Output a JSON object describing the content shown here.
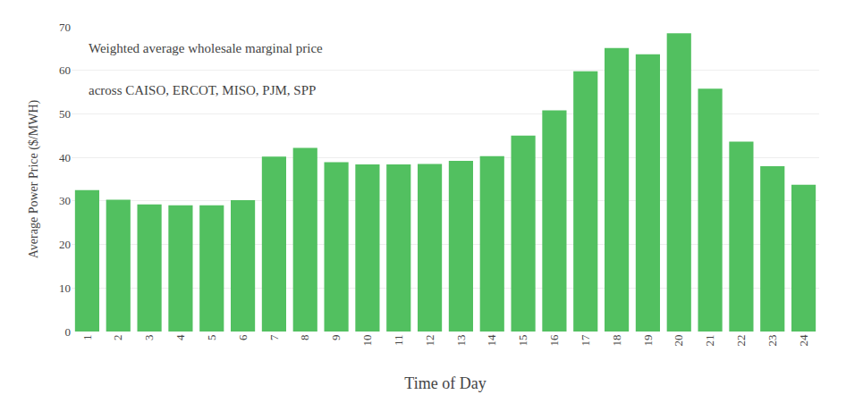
{
  "chart_data": {
    "type": "bar",
    "categories": [
      "1",
      "2",
      "3",
      "4",
      "5",
      "6",
      "7",
      "8",
      "9",
      "10",
      "11",
      "12",
      "13",
      "14",
      "15",
      "16",
      "17",
      "18",
      "19",
      "20",
      "21",
      "22",
      "23",
      "24"
    ],
    "values": [
      32.5,
      30.3,
      29.2,
      29.0,
      29.0,
      30.2,
      40.2,
      42.2,
      38.9,
      38.4,
      38.4,
      38.5,
      39.2,
      40.3,
      45.0,
      50.8,
      59.8,
      65.1,
      63.7,
      68.5,
      55.8,
      43.6,
      38.0,
      33.7
    ],
    "color": "#52C060",
    "xlabel": "Time of Day",
    "ylabel": "Average Power Price ($/MWH)",
    "annotations": [
      "Weighted average wholesale marginal price",
      "across CAISO, ERCOT, MISO, PJM, SPP"
    ],
    "ylim": [
      0,
      70
    ],
    "yticks": [
      0,
      10,
      20,
      30,
      40,
      50,
      60,
      70
    ],
    "grid": true
  }
}
